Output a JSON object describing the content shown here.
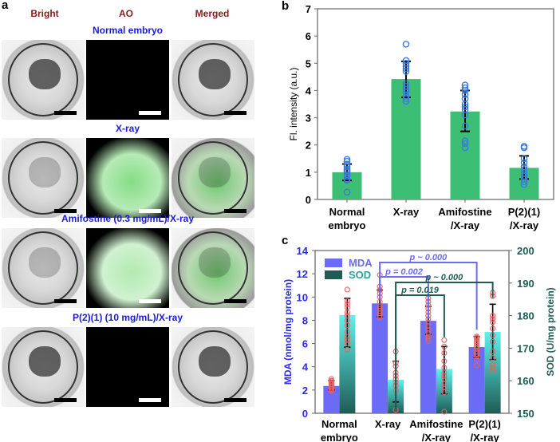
{
  "panel_a": {
    "letter": "a",
    "columns": [
      "Bright",
      "AO",
      "Merged"
    ],
    "rows": [
      {
        "label": "Normal embryo",
        "ao_signal": "none"
      },
      {
        "label": "X-ray",
        "ao_signal": "strong"
      },
      {
        "label": "Amifostine (0.3 mg/mL)/X-ray",
        "ao_signal": "moderate"
      },
      {
        "label": "P(2)(1) (10 mg/mL)/X-ray",
        "ao_signal": "none"
      }
    ],
    "colors": {
      "column_header": "#8b1a1a",
      "row_label": "#1a1adc",
      "ao_green": "#22c022"
    }
  },
  "chart_data": [
    {
      "panel": "b",
      "type": "bar",
      "title": "",
      "xlabel": "",
      "ylabel": "Fl. intensity (a.u.)",
      "ylim": [
        0,
        7
      ],
      "yticks": [
        0,
        1,
        2,
        3,
        4,
        5,
        6,
        7
      ],
      "categories": [
        "Normal\nembryo",
        "X-ray",
        "Amifostine\n/X-ray",
        "P(2)(1)\n/X-ray"
      ],
      "category_lines": [
        [
          "Normal",
          "embryo"
        ],
        [
          "X-ray"
        ],
        [
          "Amifostine",
          "/X-ray"
        ],
        [
          "P(2)(1)",
          "/X-ray"
        ]
      ],
      "values": [
        1.0,
        4.42,
        3.23,
        1.16
      ],
      "errors": [
        [
          0.7,
          1.3
        ],
        [
          3.75,
          5.07
        ],
        [
          2.5,
          4.0
        ],
        [
          0.75,
          1.6
        ]
      ],
      "points": [
        [
          0.27,
          0.7,
          0.75,
          0.85,
          0.9,
          1.0,
          1.05,
          1.1,
          1.2,
          1.3,
          1.4,
          1.47
        ],
        [
          3.6,
          3.7,
          3.8,
          3.95,
          4.05,
          4.15,
          4.25,
          4.7,
          4.8,
          4.9,
          5.0,
          5.1,
          5.7
        ],
        [
          1.9,
          2.05,
          2.15,
          2.7,
          3.1,
          3.3,
          3.4,
          3.5,
          3.7,
          3.85,
          4.0,
          4.1,
          4.2
        ],
        [
          0.55,
          0.65,
          0.75,
          0.85,
          0.95,
          1.1,
          1.2,
          1.35,
          1.5,
          1.9,
          1.95
        ]
      ],
      "bar_color": "#3cbf74",
      "point_color": "#3a7be0",
      "grid": false
    },
    {
      "panel": "c",
      "type": "bar",
      "title": "",
      "xlabel": "",
      "ylabel": "MDA (nmol/mg protein)",
      "ylabel_right": "SOD (U/mg protein)",
      "ylim": [
        0,
        14
      ],
      "yticks": [
        0,
        2,
        4,
        6,
        8,
        10,
        12,
        14
      ],
      "ylim_right": [
        150,
        200
      ],
      "yticks_right": [
        150,
        160,
        170,
        180,
        190,
        200
      ],
      "categories": [
        "Normal\nembryo",
        "X-ray",
        "Amifostine\n/X-ray",
        "P(2)(1)\n/X-ray"
      ],
      "category_lines": [
        [
          "Normal",
          "embryo"
        ],
        [
          "X-ray"
        ],
        [
          "Amifostine",
          "/X-ray"
        ],
        [
          "P(2)(1)",
          "/X-ray"
        ]
      ],
      "legend": {
        "position": "top-left",
        "entries": [
          "MDA",
          "SOD"
        ]
      },
      "series": [
        {
          "name": "MDA",
          "axis": "left",
          "color": "#6b6bf5",
          "values": [
            2.35,
            9.45,
            7.95,
            5.7
          ],
          "errors": [
            [
              2.0,
              2.8
            ],
            [
              8.3,
              10.6
            ],
            [
              6.8,
              9.2
            ],
            [
              4.8,
              6.6
            ]
          ],
          "points": [
            [
              1.9,
              2.0,
              2.1,
              2.2,
              2.3,
              2.4,
              2.5,
              2.6,
              2.7,
              2.8,
              2.95
            ],
            [
              8.2,
              8.4,
              8.6,
              8.8,
              9.0,
              9.2,
              9.6,
              10.0,
              10.3,
              10.6,
              10.9,
              11.9
            ],
            [
              6.2,
              6.4,
              6.6,
              6.9,
              7.2,
              7.5,
              7.8,
              8.1,
              8.4,
              8.7,
              9.0,
              9.3,
              9.6,
              9.9
            ],
            [
              4.1,
              4.6,
              4.9,
              5.1,
              5.3,
              5.6,
              5.8,
              6.0,
              6.2,
              6.4,
              6.5,
              6.6
            ]
          ]
        },
        {
          "name": "SOD",
          "axis": "right",
          "color": "#1f5c55",
          "values": [
            180.2,
            160.3,
            163.6,
            175.0
          ],
          "errors": [
            [
              170.3,
              185.3
            ],
            [
              153.5,
              166.0
            ],
            [
              156.0,
              170.5
            ],
            [
              166.5,
              183.5
            ]
          ],
          "points": [
            [
              169.5,
              171.5,
              172.5,
              173.5,
              175.0,
              177.0,
              178.5,
              180.0,
              181.0,
              182.5,
              183.5,
              184.5,
              188.0
            ],
            [
              151.0,
              157.0,
              158.5,
              159.5,
              160.5,
              161.5,
              162.5,
              164.5,
              165.5,
              169.0
            ],
            [
              150.5,
              156.5,
              158.0,
              159.0,
              160.5,
              161.5,
              162.5,
              164.0,
              166.0,
              168.5,
              170.5,
              172.5
            ],
            [
              163.0,
              164.0,
              165.0,
              167.0,
              169.0,
              172.0,
              174.0,
              176.0,
              178.0,
              179.0,
              180.0,
              186.0,
              187.0
            ]
          ]
        }
      ],
      "annotations": [
        {
          "text": "p = 0.002",
          "from": 1,
          "to": 2,
          "series": "MDA",
          "color": "#6b6bf5"
        },
        {
          "text": "p ~ 0.000",
          "from": 1,
          "to": 3,
          "series": "MDA",
          "color": "#6b6bf5"
        },
        {
          "text": "p = 0.019",
          "from": 1,
          "to": 2,
          "series": "SOD",
          "color": "#1f5c55"
        },
        {
          "text": "p ~ 0.000",
          "from": 1,
          "to": 3,
          "series": "SOD",
          "color": "#1f5c55"
        }
      ],
      "sod_gradient": [
        "#5ef2ee",
        "#1f5c55"
      ],
      "point_color": "#e86060",
      "left_axis_color": "#2a2af0",
      "right_axis_color": "#1f5c55",
      "grid": false
    }
  ],
  "labels": {
    "b": "b",
    "c": "c"
  }
}
